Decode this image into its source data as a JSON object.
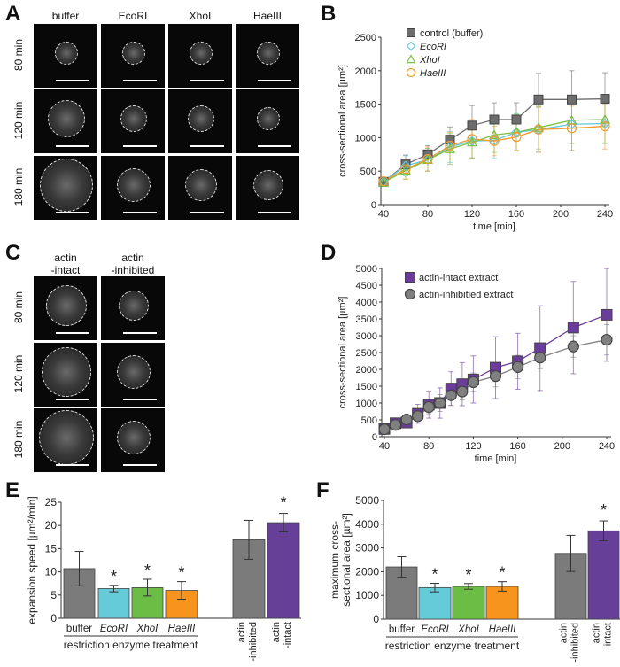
{
  "panels": {
    "A": "A",
    "B": "B",
    "C": "C",
    "D": "D",
    "E": "E",
    "F": "F"
  },
  "A": {
    "columns": [
      "buffer",
      "EcoRI",
      "XhoI",
      "HaeIII"
    ],
    "rows": [
      "80 min",
      "120 min",
      "180 min"
    ]
  },
  "C": {
    "columns": [
      "actin\n-intact",
      "actin\n-inhibited"
    ],
    "rows": [
      "80 min",
      "120 min",
      "180 min"
    ]
  },
  "chart_data": [
    {
      "id": "B",
      "type": "line",
      "xlabel": "time [min]",
      "ylabel": "cross-sectional area [µm²]",
      "xlim": [
        40,
        240
      ],
      "ylim": [
        0,
        2500
      ],
      "xticks": [
        40,
        80,
        120,
        160,
        200,
        240
      ],
      "yticks": [
        0,
        500,
        1000,
        1500,
        2000,
        2500
      ],
      "legend": "top-left",
      "x": [
        40,
        60,
        80,
        100,
        120,
        140,
        160,
        180,
        210,
        240
      ],
      "series": [
        {
          "name": "control (buffer)",
          "color": "#6d6d6d",
          "marker": "square",
          "values": [
            340,
            600,
            750,
            970,
            1180,
            1270,
            1270,
            1570,
            1570,
            1580
          ],
          "error": [
            40,
            140,
            130,
            190,
            300,
            250,
            250,
            390,
            430,
            390
          ]
        },
        {
          "name": "EcoRI",
          "color": "#5fc8dc",
          "marker": "diamond",
          "values": [
            340,
            580,
            670,
            860,
            950,
            960,
            1080,
            1120,
            1200,
            1210
          ],
          "error": [
            50,
            150,
            170,
            230,
            250,
            270,
            280,
            330,
            390,
            300
          ]
        },
        {
          "name": "XhoI",
          "color": "#79c043",
          "marker": "triangle",
          "values": [
            330,
            510,
            670,
            830,
            930,
            1040,
            1080,
            1150,
            1260,
            1270
          ],
          "error": [
            50,
            130,
            170,
            230,
            240,
            260,
            270,
            320,
            350,
            350
          ]
        },
        {
          "name": "HaeIII",
          "color": "#f49a2c",
          "marker": "circle",
          "values": [
            350,
            530,
            680,
            880,
            980,
            950,
            1010,
            1120,
            1140,
            1170
          ],
          "error": [
            50,
            150,
            180,
            200,
            290,
            220,
            210,
            340,
            330,
            340
          ]
        }
      ]
    },
    {
      "id": "D",
      "type": "line",
      "xlabel": "time [min]",
      "ylabel": "cross-sectional area [µm²]",
      "xlim": [
        40,
        240
      ],
      "ylim": [
        0,
        5000
      ],
      "xticks": [
        40,
        80,
        120,
        160,
        200,
        240
      ],
      "yticks": [
        0,
        500,
        1000,
        1500,
        2000,
        2500,
        3000,
        3500,
        4000,
        4500,
        5000
      ],
      "legend": "top-left",
      "x": [
        40,
        50,
        60,
        70,
        80,
        90,
        100,
        110,
        120,
        140,
        160,
        180,
        210,
        240
      ],
      "series": [
        {
          "name": "actin-intact extract",
          "color": "#6a3d9a",
          "marker": "square",
          "values": [
            230,
            400,
            420,
            680,
            950,
            1000,
            1430,
            1560,
            1700,
            2050,
            2240,
            2630,
            3240,
            3620
          ],
          "error": [
            60,
            80,
            100,
            280,
            400,
            450,
            500,
            640,
            700,
            920,
            830,
            1260,
            1370,
            1380
          ]
        },
        {
          "name": "actin-inhibitied extract",
          "color": "#808080",
          "marker": "circle",
          "values": [
            220,
            350,
            510,
            610,
            880,
            1000,
            1230,
            1340,
            1620,
            1800,
            2070,
            2350,
            2680,
            2880
          ],
          "error": [
            50,
            80,
            100,
            150,
            200,
            250,
            300,
            250,
            270,
            320,
            350,
            330,
            320,
            450
          ]
        }
      ]
    },
    {
      "id": "E",
      "type": "bar",
      "ylabel": "expansion speed [µm²/min]",
      "ylim": [
        0,
        25
      ],
      "yticks": [
        0,
        5,
        10,
        15,
        20,
        25
      ],
      "categories": [
        "buffer",
        "EcoRI",
        "XhoI",
        "HaeIII",
        "actin\n-inhibited",
        "actin\n-intact"
      ],
      "group_label": "restriction enzyme treatment",
      "values": [
        10.7,
        6.4,
        6.6,
        6.0,
        16.9,
        20.6
      ],
      "error": [
        3.7,
        0.7,
        1.8,
        1.9,
        4.2,
        2.0
      ],
      "colors": [
        "#7b7b7b",
        "#66cbd9",
        "#6cbd45",
        "#f7941d",
        "#7b7b7b",
        "#663f99"
      ],
      "significance": [
        "",
        "*",
        "*",
        "*",
        "",
        "*"
      ],
      "star_colors": [
        "",
        "#66cbd9",
        "#6cbd45",
        "#f5c518",
        "",
        "#663f99"
      ]
    },
    {
      "id": "F",
      "type": "bar",
      "ylabel": "maximum cross-\nsectional area [µm²]",
      "ylim": [
        0,
        5000
      ],
      "yticks": [
        0,
        1000,
        2000,
        3000,
        4000,
        5000
      ],
      "categories": [
        "buffer",
        "EcoRI",
        "XhoI",
        "HaeIII",
        "actin\n-inhibited",
        "actin\n-intact"
      ],
      "group_label": "restriction enzyme treatment",
      "values": [
        2200,
        1330,
        1380,
        1380,
        2770,
        3720
      ],
      "error": [
        430,
        180,
        120,
        200,
        760,
        420
      ],
      "colors": [
        "#7b7b7b",
        "#66cbd9",
        "#6cbd45",
        "#f7941d",
        "#7b7b7b",
        "#663f99"
      ],
      "significance": [
        "",
        "*",
        "*",
        "*",
        "",
        "*"
      ],
      "star_colors": [
        "",
        "#66cbd9",
        "#6cbd45",
        "#f5c518",
        "",
        "#663f99"
      ]
    }
  ]
}
